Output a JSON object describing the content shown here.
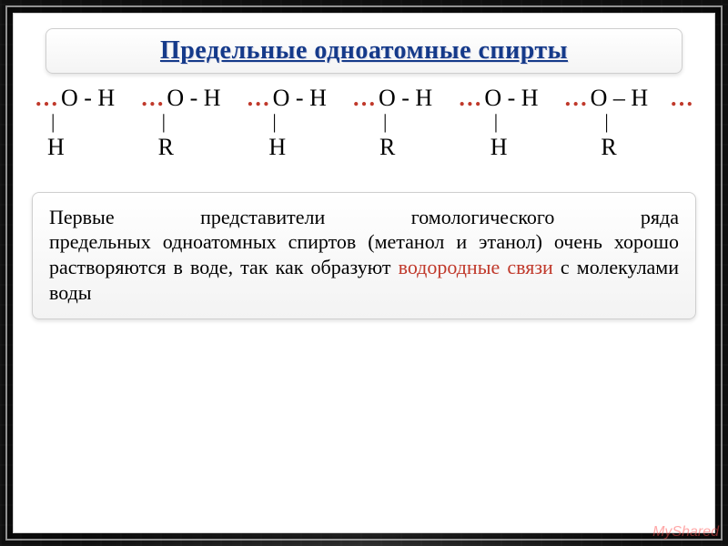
{
  "slide": {
    "title": "Предельные одноатомные спирты",
    "background_color": "#ffffff",
    "frame_border_color": "#cfcfcf",
    "title_color": "#153a8a",
    "title_fontsize": 28,
    "accent_color": "#c0392b",
    "body_text_color": "#000000",
    "body_fontsize": 22
  },
  "chain": {
    "ellipsis": "…",
    "units": [
      {
        "oh": "O - H",
        "sub": "H",
        "sep": "-"
      },
      {
        "oh": "O - H",
        "sub": "R",
        "sep": "-"
      },
      {
        "oh": "O - H",
        "sub": "H",
        "sep": "-"
      },
      {
        "oh": "O - H",
        "sub": "R",
        "sep": "-"
      },
      {
        "oh": "O - H",
        "sub": "H",
        "sep": "-"
      },
      {
        "oh": "O – H",
        "sub": "R",
        "sep": "–"
      }
    ],
    "bond_symbol": "|"
  },
  "info": {
    "line1_words": [
      "Первые",
      "представители",
      "гомологического",
      "ряда"
    ],
    "rest_before": "предельных одноатомных спиртов (метанол и этанол) очень хорошо  растворяются в воде, так как образуют ",
    "highlight": "водородные связи",
    "rest_after": " с молекулами воды"
  },
  "watermark": {
    "left": "",
    "right": "MyShared"
  }
}
